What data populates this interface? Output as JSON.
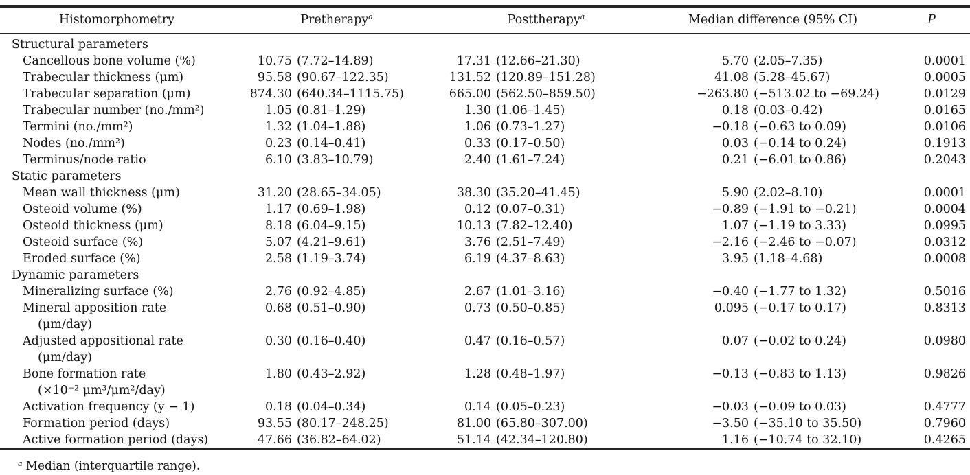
{
  "table": {
    "columns": [
      {
        "label": "Histomorphometry",
        "sup": ""
      },
      {
        "label": "Pretherapy",
        "sup": "a"
      },
      {
        "label": "Posttherapy",
        "sup": "a"
      },
      {
        "label": "Median difference (95% CI)",
        "sup": ""
      },
      {
        "label": "P",
        "sup": ""
      }
    ],
    "sections": [
      {
        "header": "Structural parameters",
        "rows": [
          {
            "label": [
              "Cancellous bone volume (%)"
            ],
            "pre": [
              "10.75",
              "(7.72–14.89)"
            ],
            "post": [
              "17.31",
              "(12.66–21.30)"
            ],
            "diff": [
              "5.70",
              "(2.05–7.35)"
            ],
            "p": "0.0001"
          },
          {
            "label": [
              "Trabecular thickness (μm)"
            ],
            "pre": [
              "95.58",
              "(90.67–122.35)"
            ],
            "post": [
              "131.52",
              "(120.89–151.28)"
            ],
            "diff": [
              "41.08",
              "(5.28–45.67)"
            ],
            "p": "0.0005"
          },
          {
            "label": [
              "Trabecular separation (μm)"
            ],
            "pre": [
              "874.30",
              "(640.34–1115.75)"
            ],
            "post": [
              "665.00",
              "(562.50–859.50)"
            ],
            "diff": [
              "−263.80",
              "(−513.02 to −69.24)"
            ],
            "p": "0.0129"
          },
          {
            "label": [
              "Trabecular number (no./mm²)"
            ],
            "pre": [
              "1.05",
              "(0.81–1.29)"
            ],
            "post": [
              "1.30",
              "(1.06–1.45)"
            ],
            "diff": [
              "0.18",
              "(0.03–0.42)"
            ],
            "p": "0.0165"
          },
          {
            "label": [
              "Termini (no./mm²)"
            ],
            "pre": [
              "1.32",
              "(1.04–1.88)"
            ],
            "post": [
              "1.06",
              "(0.73–1.27)"
            ],
            "diff": [
              "−0.18",
              "(−0.63 to 0.09)"
            ],
            "p": "0.0106"
          },
          {
            "label": [
              "Nodes (no./mm²)"
            ],
            "pre": [
              "0.23",
              "(0.14–0.41)"
            ],
            "post": [
              "0.33",
              "(0.17–0.50)"
            ],
            "diff": [
              "0.03",
              "(−0.14 to 0.24)"
            ],
            "p": "0.1913"
          },
          {
            "label": [
              "Terminus/node ratio"
            ],
            "pre": [
              "6.10",
              "(3.83–10.79)"
            ],
            "post": [
              "2.40",
              "(1.61–7.24)"
            ],
            "diff": [
              "0.21",
              "(−6.01 to 0.86)"
            ],
            "p": "0.2043"
          }
        ]
      },
      {
        "header": "Static parameters",
        "rows": [
          {
            "label": [
              "Mean wall thickness (μm)"
            ],
            "pre": [
              "31.20",
              "(28.65–34.05)"
            ],
            "post": [
              "38.30",
              "(35.20–41.45)"
            ],
            "diff": [
              "5.90",
              "(2.02–8.10)"
            ],
            "p": "0.0001"
          },
          {
            "label": [
              "Osteoid volume (%)"
            ],
            "pre": [
              "1.17",
              "(0.69–1.98)"
            ],
            "post": [
              "0.12",
              "(0.07–0.31)"
            ],
            "diff": [
              "−0.89",
              "(−1.91 to −0.21)"
            ],
            "p": "0.0004"
          },
          {
            "label": [
              "Osteoid thickness (μm)"
            ],
            "pre": [
              "8.18",
              "(6.04–9.15)"
            ],
            "post": [
              "10.13",
              "(7.82–12.40)"
            ],
            "diff": [
              "1.07",
              "(−1.19 to 3.33)"
            ],
            "p": "0.0995"
          },
          {
            "label": [
              "Osteoid surface (%)"
            ],
            "pre": [
              "5.07",
              "(4.21–9.61)"
            ],
            "post": [
              "3.76",
              "(2.51–7.49)"
            ],
            "diff": [
              "−2.16",
              "(−2.46 to −0.07)"
            ],
            "p": "0.0312"
          },
          {
            "label": [
              "Eroded surface (%)"
            ],
            "pre": [
              "2.58",
              "(1.19–3.74)"
            ],
            "post": [
              "6.19",
              "(4.37–8.63)"
            ],
            "diff": [
              "3.95",
              "(1.18–4.68)"
            ],
            "p": "0.0008"
          }
        ]
      },
      {
        "header": "Dynamic parameters",
        "rows": [
          {
            "label": [
              "Mineralizing surface (%)"
            ],
            "pre": [
              "2.76",
              "(0.92–4.85)"
            ],
            "post": [
              "2.67",
              "(1.01–3.16)"
            ],
            "diff": [
              "−0.40",
              "(−1.77 to 1.32)"
            ],
            "p": "0.5016"
          },
          {
            "label": [
              "Mineral apposition rate",
              "(μm/day)"
            ],
            "pre": [
              "0.68",
              "(0.51–0.90)"
            ],
            "post": [
              "0.73",
              "(0.50–0.85)"
            ],
            "diff": [
              "0.095",
              "(−0.17 to 0.17)"
            ],
            "p": "0.8313"
          },
          {
            "label": [
              "Adjusted appositional rate",
              "(μm/day)"
            ],
            "pre": [
              "0.30",
              "(0.16–0.40)"
            ],
            "post": [
              "0.47",
              "(0.16–0.57)"
            ],
            "diff": [
              "0.07",
              "(−0.02 to 0.24)"
            ],
            "p": "0.0980"
          },
          {
            "label": [
              "Bone formation rate",
              "(×10⁻² μm³/μm²/day)"
            ],
            "pre": [
              "1.80",
              "(0.43–2.92)"
            ],
            "post": [
              "1.28",
              "(0.48–1.97)"
            ],
            "diff": [
              "−0.13",
              "(−0.83 to 1.13)"
            ],
            "p": "0.9826"
          },
          {
            "label": [
              "Activation frequency (y − 1)"
            ],
            "pre": [
              "0.18",
              "(0.04–0.34)"
            ],
            "post": [
              "0.14",
              "(0.05–0.23)"
            ],
            "diff": [
              "−0.03",
              "(−0.09 to 0.03)"
            ],
            "p": "0.4777"
          },
          {
            "label": [
              "Formation period (days)"
            ],
            "pre": [
              "93.55",
              "(80.17–248.25)"
            ],
            "post": [
              "81.00",
              "(65.80–307.00)"
            ],
            "diff": [
              "−3.50",
              "(−35.10 to 35.50)"
            ],
            "p": "0.7960"
          },
          {
            "label": [
              "Active formation period (days)"
            ],
            "pre": [
              "47.66",
              "(36.82–64.02)"
            ],
            "post": [
              "51.14",
              "(42.34–120.80)"
            ],
            "diff": [
              "1.16",
              "(−10.74 to 32.10)"
            ],
            "p": "0.4265"
          }
        ]
      }
    ]
  },
  "footnote": {
    "sup": "a",
    "text": "Median (interquartile range)."
  }
}
